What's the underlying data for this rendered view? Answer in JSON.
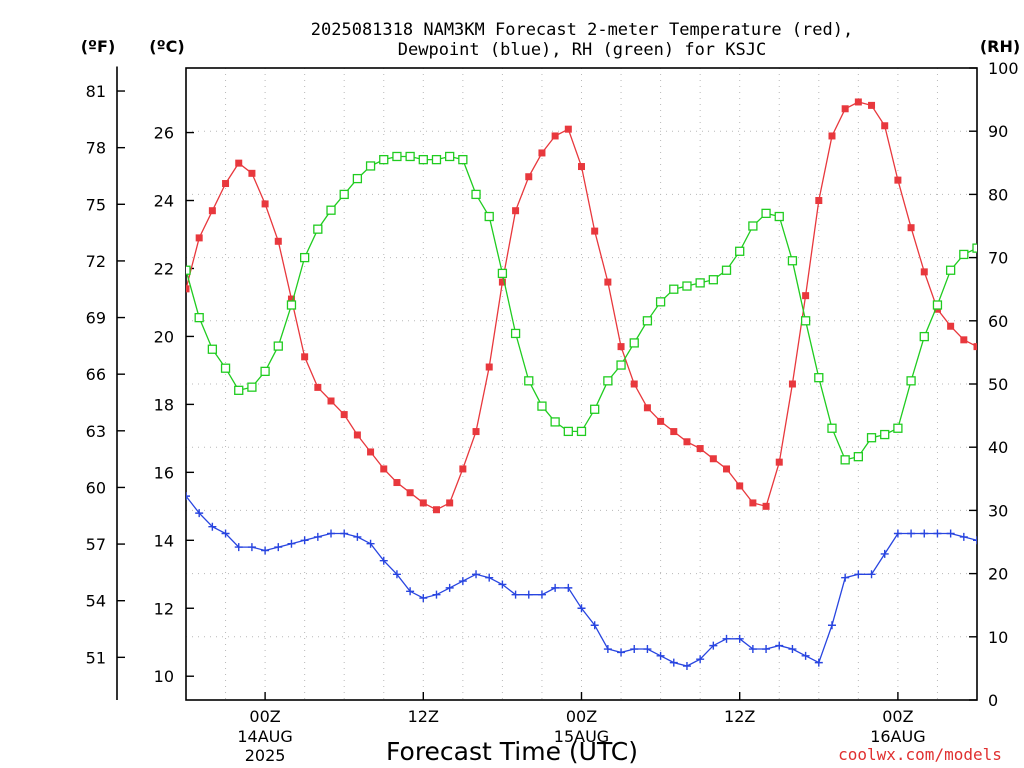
{
  "title": {
    "line1": "2025081318 NAM3KM Forecast 2-meter Temperature (red),",
    "line2": "Dewpoint (blue), RH (green) for KSJC"
  },
  "units": {
    "fahrenheit": "(ºF)",
    "celsius": "(ºC)",
    "rh": "(RH)"
  },
  "x_axis": {
    "title": "Forecast Time (UTC)",
    "ticks": [
      {
        "h": 6,
        "label": "00Z",
        "sub1": "14AUG",
        "sub2": "2025"
      },
      {
        "h": 18,
        "label": "12Z",
        "sub1": "",
        "sub2": ""
      },
      {
        "h": 30,
        "label": "00Z",
        "sub1": "15AUG",
        "sub2": ""
      },
      {
        "h": 42,
        "label": "12Z",
        "sub1": "",
        "sub2": ""
      },
      {
        "h": 54,
        "label": "00Z",
        "sub1": "16AUG",
        "sub2": ""
      }
    ]
  },
  "credit": "coolwx.com/models",
  "colors": {
    "temperature": "#e8383d",
    "dewpoint": "#2845e0",
    "rh": "#20cc20",
    "background": "#ffffff"
  },
  "chart_data": {
    "type": "line",
    "x_unit": "forecast hour from 2025-08-13 18Z",
    "x": [
      0,
      1,
      2,
      3,
      4,
      5,
      6,
      7,
      8,
      9,
      10,
      11,
      12,
      13,
      14,
      15,
      16,
      17,
      18,
      19,
      20,
      21,
      22,
      23,
      24,
      25,
      26,
      27,
      28,
      29,
      30,
      31,
      32,
      33,
      34,
      35,
      36,
      37,
      38,
      39,
      40,
      41,
      42,
      43,
      44,
      45,
      46,
      47,
      48,
      49,
      50,
      51,
      52,
      53,
      54,
      55,
      56,
      57,
      58,
      59,
      60
    ],
    "xlim": [
      0,
      60
    ],
    "y_left_celsius": {
      "lim": [
        9.3,
        27.9
      ],
      "ticks": [
        10,
        12,
        14,
        16,
        18,
        20,
        22,
        24,
        26
      ]
    },
    "y_left_fahrenheit": {
      "ticks": [
        51,
        54,
        57,
        60,
        63,
        66,
        69,
        72,
        75,
        78,
        81
      ]
    },
    "y_right_rh": {
      "lim": [
        0,
        100
      ],
      "ticks": [
        0,
        10,
        20,
        30,
        40,
        50,
        60,
        70,
        80,
        90,
        100
      ]
    },
    "series": [
      {
        "name": "Temperature",
        "axis": "celsius",
        "marker": "filled-square",
        "values": [
          21.4,
          22.9,
          23.7,
          24.5,
          25.1,
          24.8,
          23.9,
          22.8,
          21.1,
          19.4,
          18.5,
          18.1,
          17.7,
          17.1,
          16.6,
          16.1,
          15.7,
          15.4,
          15.1,
          14.9,
          15.1,
          16.1,
          17.2,
          19.1,
          21.6,
          23.7,
          24.7,
          25.4,
          25.9,
          26.1,
          25.0,
          23.1,
          21.6,
          19.7,
          18.6,
          17.9,
          17.5,
          17.2,
          16.9,
          16.7,
          16.4,
          16.1,
          15.6,
          15.1,
          15.0,
          16.3,
          18.6,
          21.2,
          24.0,
          25.9,
          26.7,
          26.9,
          26.8,
          26.2,
          24.6,
          23.2,
          21.9,
          20.8,
          20.3,
          19.9,
          19.7
        ]
      },
      {
        "name": "Dewpoint",
        "axis": "celsius",
        "marker": "plus",
        "values": [
          15.3,
          14.8,
          14.4,
          14.2,
          13.8,
          13.8,
          13.7,
          13.8,
          13.9,
          14.0,
          14.1,
          14.2,
          14.2,
          14.1,
          13.9,
          13.4,
          13.0,
          12.5,
          12.3,
          12.4,
          12.6,
          12.8,
          13.0,
          12.9,
          12.7,
          12.4,
          12.4,
          12.4,
          12.6,
          12.6,
          12.0,
          11.5,
          10.8,
          10.7,
          10.8,
          10.8,
          10.6,
          10.4,
          10.3,
          10.5,
          10.9,
          11.1,
          11.1,
          10.8,
          10.8,
          10.9,
          10.8,
          10.6,
          10.4,
          11.5,
          12.9,
          13.0,
          13.0,
          13.6,
          14.2,
          14.2,
          14.2,
          14.2,
          14.2,
          14.1,
          14.0
        ]
      },
      {
        "name": "RH",
        "axis": "rh",
        "marker": "open-square",
        "values": [
          68,
          60.5,
          55.5,
          52.5,
          49,
          49.5,
          52,
          56,
          62.5,
          70,
          74.5,
          77.5,
          80,
          82.5,
          84.5,
          85.5,
          86,
          86,
          85.5,
          85.5,
          86,
          85.5,
          80,
          76.5,
          67.5,
          58,
          50.5,
          46.5,
          44,
          42.5,
          42.5,
          46,
          50.5,
          53,
          56.5,
          60,
          63,
          65,
          65.5,
          66,
          66.5,
          68,
          71,
          75,
          77,
          76.5,
          69.5,
          60,
          51,
          43,
          38,
          38.5,
          41.5,
          42,
          43,
          50.5,
          57.5,
          62.5,
          68,
          70.5,
          71.5
        ]
      }
    ]
  }
}
